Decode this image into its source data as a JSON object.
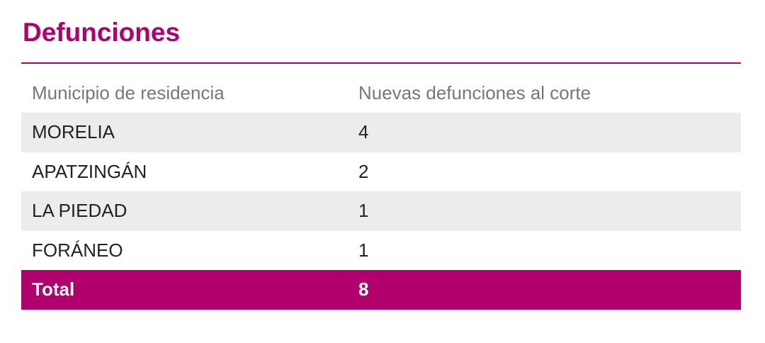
{
  "title": "Defunciones",
  "colors": {
    "accent": "#b1006e",
    "row_shade": "#ececec",
    "header_text": "#777777",
    "body_text": "#222222"
  },
  "table": {
    "headers": [
      "Municipio de residencia",
      "Nuevas defunciones al corte"
    ],
    "rows": [
      {
        "municipio": "MORELIA",
        "defunciones": "4"
      },
      {
        "municipio": "APATZINGÁN",
        "defunciones": "2"
      },
      {
        "municipio": "LA PIEDAD",
        "defunciones": "1"
      },
      {
        "municipio": "FORÁNEO",
        "defunciones": "1"
      }
    ],
    "total": {
      "label": "Total",
      "value": "8"
    }
  }
}
